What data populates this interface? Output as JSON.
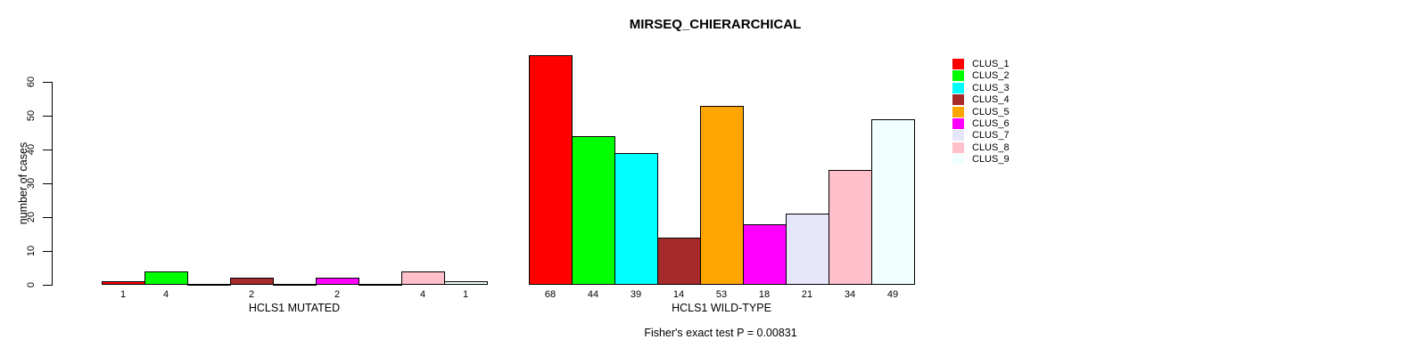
{
  "title": "MIRSEQ_CHIERARCHICAL",
  "chart_data": {
    "type": "bar",
    "title": "MIRSEQ_CHIERARCHICAL",
    "ylabel": "number of cases",
    "xlabel": "",
    "ylim": [
      0,
      68
    ],
    "yticks": [
      0,
      10,
      20,
      30,
      40,
      50,
      60
    ],
    "grid": false,
    "legend_position": "right-outside",
    "categories": [
      "CLUS_1",
      "CLUS_2",
      "CLUS_3",
      "CLUS_4",
      "CLUS_5",
      "CLUS_6",
      "CLUS_7",
      "CLUS_8",
      "CLUS_9"
    ],
    "colors": [
      "#FF0000",
      "#00FF00",
      "#00FFFF",
      "#A52A2A",
      "#FFA500",
      "#FF00FF",
      "#E6E6FA",
      "#FFC0CB",
      "#F0FFFF"
    ],
    "series": [
      {
        "name": "HCLS1 MUTATED",
        "values": [
          1,
          4,
          0,
          2,
          0,
          2,
          0,
          4,
          1
        ]
      },
      {
        "name": "HCLS1 WILD-TYPE",
        "values": [
          68,
          44,
          39,
          14,
          53,
          18,
          21,
          34,
          49
        ]
      }
    ],
    "bar_value_labels_shown": true,
    "annotation": "Fisher's exact test P = 0.00831"
  }
}
